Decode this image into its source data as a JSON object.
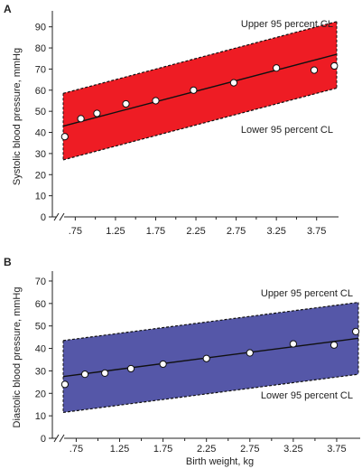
{
  "chart_data": [
    {
      "type": "scatter",
      "panel_label": "A",
      "ylabel": "Systolic blood pressure, mmHg",
      "xlabel": "",
      "x_ticks": [
        ".75",
        "1.25",
        "1.75",
        "2.25",
        "2.75",
        "3.25",
        "3.75"
      ],
      "x_tick_values": [
        0.75,
        1.25,
        1.75,
        2.25,
        2.75,
        3.25,
        3.75
      ],
      "y_ticks": [
        "0",
        "10",
        "20",
        "30",
        "40",
        "50",
        "60",
        "70",
        "80",
        "90"
      ],
      "ylim": [
        0,
        95
      ],
      "xlim": [
        0.6,
        4.0
      ],
      "axis_break": true,
      "band_color": "#ee1c24",
      "points": [
        {
          "x": 0.62,
          "y": 38
        },
        {
          "x": 0.82,
          "y": 46.5
        },
        {
          "x": 1.02,
          "y": 49
        },
        {
          "x": 1.38,
          "y": 53.5
        },
        {
          "x": 1.75,
          "y": 55
        },
        {
          "x": 2.22,
          "y": 60
        },
        {
          "x": 2.72,
          "y": 63.5
        },
        {
          "x": 3.25,
          "y": 70.5
        },
        {
          "x": 3.72,
          "y": 69.5
        },
        {
          "x": 3.97,
          "y": 71.5
        }
      ],
      "regression": {
        "x": [
          0.6,
          4.0
        ],
        "y": [
          43,
          77
        ]
      },
      "upper_cl": {
        "x": [
          0.6,
          4.0
        ],
        "y": [
          58.5,
          92.5
        ]
      },
      "lower_cl": {
        "x": [
          0.6,
          4.0
        ],
        "y": [
          27,
          61
        ]
      },
      "upper_label": "Upper 95 percent CL",
      "lower_label": "Lower 95 percent CL"
    },
    {
      "type": "scatter",
      "panel_label": "B",
      "ylabel": "Diastolic blood pressure, mmHg",
      "xlabel": "Birth weight, kg",
      "x_ticks": [
        ".75",
        "1.25",
        "1.75",
        "2.25",
        "2.75",
        "3.25",
        "3.75"
      ],
      "x_tick_values": [
        0.75,
        1.25,
        1.75,
        2.25,
        2.75,
        3.25,
        3.75
      ],
      "y_ticks": [
        "0",
        "10",
        "20",
        "30",
        "40",
        "50",
        "60",
        "70"
      ],
      "ylim": [
        0,
        72
      ],
      "xlim": [
        0.6,
        4.0
      ],
      "axis_break": true,
      "band_color": "#5557a8",
      "points": [
        {
          "x": 0.62,
          "y": 24
        },
        {
          "x": 0.85,
          "y": 28.5
        },
        {
          "x": 1.08,
          "y": 29
        },
        {
          "x": 1.38,
          "y": 31
        },
        {
          "x": 1.75,
          "y": 33
        },
        {
          "x": 2.25,
          "y": 35.5
        },
        {
          "x": 2.75,
          "y": 38
        },
        {
          "x": 3.25,
          "y": 42
        },
        {
          "x": 3.72,
          "y": 41.5
        },
        {
          "x": 3.97,
          "y": 47.5
        }
      ],
      "regression": {
        "x": [
          0.6,
          4.0
        ],
        "y": [
          27.5,
          44.5
        ]
      },
      "upper_cl": {
        "x": [
          0.6,
          4.0
        ],
        "y": [
          43.5,
          60.5
        ]
      },
      "lower_cl": {
        "x": [
          0.6,
          4.0
        ],
        "y": [
          11.5,
          28.5
        ]
      },
      "upper_label": "Upper 95 percent CL",
      "lower_label": "Lower 95 percent CL"
    }
  ]
}
